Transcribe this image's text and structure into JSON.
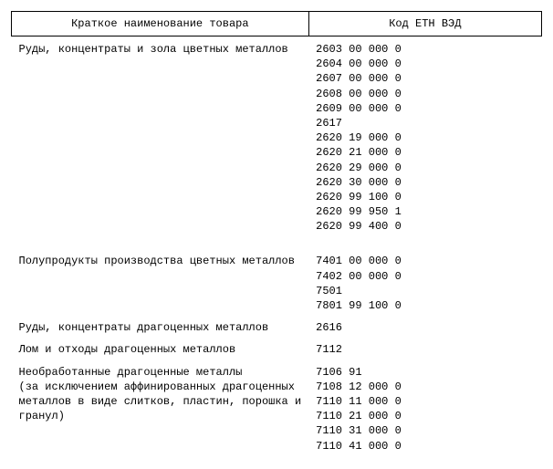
{
  "columns": {
    "name": "Краткое наименование товара",
    "code": "Код ЕТН ВЭД"
  },
  "rows": [
    {
      "cls": "first-section",
      "name": "Руды, концентраты и зола цветных металлов",
      "code": "2603 00 000 0"
    },
    {
      "cls": "tight",
      "name": "",
      "code": "2604 00 000 0"
    },
    {
      "cls": "tight",
      "name": "",
      "code": "2607 00 000 0"
    },
    {
      "cls": "tight",
      "name": "",
      "code": "2608 00 000 0"
    },
    {
      "cls": "tight",
      "name": "",
      "code": "2609 00 000 0"
    },
    {
      "cls": "tight",
      "name": "",
      "code": "2617"
    },
    {
      "cls": "tight",
      "name": "",
      "code": "2620 19 000 0"
    },
    {
      "cls": "tight",
      "name": "",
      "code": "2620 21 000 0"
    },
    {
      "cls": "tight",
      "name": "",
      "code": "2620 29 000 0"
    },
    {
      "cls": "tight",
      "name": "",
      "code": "2620 30 000 0"
    },
    {
      "cls": "tight",
      "name": "",
      "code": "2620 99 100 0"
    },
    {
      "cls": "tight",
      "name": "",
      "code": "2620 99 950 1"
    },
    {
      "cls": "tight",
      "name": "",
      "code": "2620 99 400 0"
    },
    {
      "cls": "big-gap",
      "name": "Полупродукты производства цветных металлов",
      "code": "7401 00 000 0"
    },
    {
      "cls": "tight",
      "name": "",
      "code": "7402 00 000 0"
    },
    {
      "cls": "tight",
      "name": "",
      "code": "7501"
    },
    {
      "cls": "tight",
      "name": "",
      "code": "7801 99 100 0"
    },
    {
      "cls": "section",
      "name": "Руды, концентраты драгоценных металлов",
      "code": "2616"
    },
    {
      "cls": "section",
      "name": "Лом и отходы драгоценных металлов",
      "code": "7112"
    },
    {
      "cls": "section",
      "name": "Необработанные драгоценные металлы",
      "code": "7106 91"
    },
    {
      "cls": "tight",
      "name": "(за исключением аффинированных драгоценных",
      "code": "7108 12 000 0"
    },
    {
      "cls": "tight",
      "name": "металлов в виде слитков, пластин, порошка и",
      "code": "7110 11 000 0"
    },
    {
      "cls": "tight",
      "name": "гранул)",
      "code": "7110 21 000 0"
    },
    {
      "cls": "tight",
      "name": "",
      "code": "7110 31 000 0"
    },
    {
      "cls": "tight",
      "name": "",
      "code": "7110 41 000 0"
    }
  ]
}
